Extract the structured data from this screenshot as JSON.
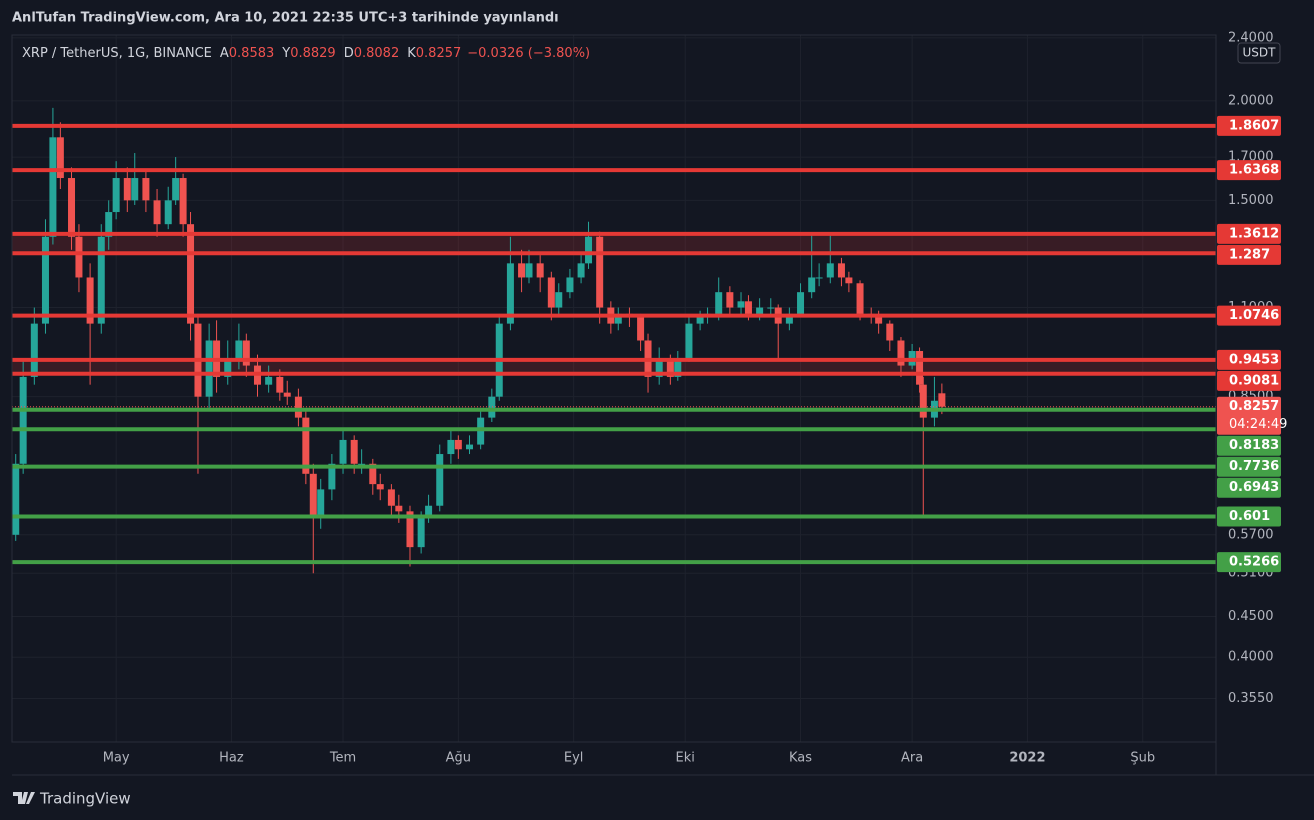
{
  "chart_data": {
    "type": "candlestick",
    "title": "AnlTufan TradingView.com, Ara 10, 2021 22:35 UTC+3 tarihinde yayınlandı",
    "symbol": "XRP / TetherUS, 1G, BINANCE",
    "ohlc_labels": [
      "A",
      "Y",
      "D",
      "K"
    ],
    "change": "−0.0326 (−3.80%)",
    "currency": "USDT",
    "countdown": "04:24:49",
    "brand": "TradingView",
    "log": true,
    "grid": true,
    "up_color": "#26a69a",
    "down_color": "#ef5350",
    "xlim": [
      2,
      325.7
    ],
    "xticks": [
      {
        "value": 30,
        "label": "May"
      },
      {
        "value": 61,
        "label": "Haz"
      },
      {
        "value": 91,
        "label": "Tem"
      },
      {
        "value": 122,
        "label": "Ağu"
      },
      {
        "value": 153,
        "label": "Eyl"
      },
      {
        "value": 183,
        "label": "Eki"
      },
      {
        "value": 214,
        "label": "Kas"
      },
      {
        "value": 244,
        "label": "Ara"
      },
      {
        "value": 275,
        "label": "2022"
      },
      {
        "value": 306,
        "label": "Şub"
      }
    ],
    "ylim": [
      0.313,
      2.42
    ],
    "yticks": [
      {
        "value": 2.4,
        "label": "2.4000"
      },
      {
        "value": 2.0,
        "label": "2.0000"
      },
      {
        "value": 1.7,
        "label": "1.7000"
      },
      {
        "value": 1.5,
        "label": "1.5000"
      },
      {
        "value": 1.1,
        "label": "1.1000"
      },
      {
        "value": 0.85,
        "label": "0.8500"
      },
      {
        "value": 0.57,
        "label": "0.5700"
      },
      {
        "value": 0.51,
        "label": "0.5100"
      },
      {
        "value": 0.45,
        "label": "0.4500"
      },
      {
        "value": 0.4,
        "label": "0.4000"
      },
      {
        "value": 0.355,
        "label": "0.3550"
      }
    ],
    "levels": [
      {
        "value": 1.8607,
        "color": "#e53935"
      },
      {
        "value": 1.6368,
        "color": "#e53935"
      },
      {
        "value": 1.3612,
        "color": "#e53935",
        "zone_with_next": true
      },
      {
        "value": 1.287,
        "color": "#e53935"
      },
      {
        "value": 1.0746,
        "color": "#e53935"
      },
      {
        "value": 0.9453,
        "color": "#e53935",
        "zone_with_next": true
      },
      {
        "value": 0.9081,
        "color": "#e53935"
      },
      {
        "value": 0.8183,
        "color": "#43a047"
      },
      {
        "value": 0.7736,
        "color": "#43a047"
      },
      {
        "value": 0.6943,
        "color": "#43a047"
      },
      {
        "value": 0.601,
        "color": "#43a047"
      },
      {
        "value": 0.5266,
        "color": "#43a047"
      }
    ],
    "candles": {
      "x": [
        3,
        5,
        8,
        11,
        13,
        15,
        18,
        20,
        23,
        26,
        28,
        30,
        33,
        35,
        38,
        41,
        44,
        46,
        48,
        50,
        52,
        55,
        57,
        60,
        63,
        65,
        68,
        71,
        74,
        76,
        79,
        81,
        83,
        85,
        88,
        91,
        94,
        96,
        99,
        101,
        104,
        106,
        109,
        112,
        114,
        117,
        120,
        122,
        125,
        128,
        131,
        133,
        136,
        139,
        141,
        144,
        147,
        149,
        152,
        155,
        157,
        160,
        163,
        165,
        168,
        171,
        173,
        176,
        179,
        181,
        184,
        187,
        189,
        192,
        195,
        198,
        200,
        203,
        206,
        208,
        211,
        214,
        217,
        219,
        222,
        225,
        227,
        230,
        233,
        235,
        238,
        241,
        244,
        246,
        247,
        250,
        252
      ],
      "open": [
        0.57,
        0.7,
        0.9,
        1.05,
        1.35,
        1.8,
        1.6,
        1.35,
        1.2,
        1.05,
        1.35,
        1.45,
        1.6,
        1.5,
        1.6,
        1.5,
        1.4,
        1.5,
        1.6,
        1.4,
        1.05,
        0.85,
        1.0,
        0.9,
        0.95,
        1.0,
        0.93,
        0.88,
        0.9,
        0.86,
        0.85,
        0.8,
        0.68,
        0.6,
        0.65,
        0.7,
        0.75,
        0.7,
        0.7,
        0.66,
        0.65,
        0.62,
        0.61,
        0.55,
        0.6,
        0.62,
        0.72,
        0.75,
        0.73,
        0.74,
        0.8,
        0.85,
        1.05,
        1.25,
        1.2,
        1.25,
        1.2,
        1.1,
        1.15,
        1.2,
        1.25,
        1.35,
        1.1,
        1.05,
        1.08,
        1.07,
        1.0,
        0.9,
        0.95,
        0.9,
        0.95,
        1.05,
        1.07,
        1.08,
        1.15,
        1.1,
        1.12,
        1.08,
        1.1,
        1.1,
        1.05,
        1.08,
        1.15,
        1.2,
        1.2,
        1.25,
        1.2,
        1.18,
        1.08,
        1.07,
        1.05,
        1.0,
        0.93,
        0.97,
        0.88,
        0.8,
        0.8583
      ],
      "high": [
        0.72,
        0.95,
        1.1,
        1.42,
        1.96,
        1.88,
        1.65,
        1.4,
        1.25,
        1.4,
        1.5,
        1.68,
        1.65,
        1.72,
        1.64,
        1.55,
        1.56,
        1.7,
        1.62,
        1.45,
        1.08,
        1.05,
        1.06,
        1.0,
        1.05,
        1.02,
        0.96,
        0.93,
        0.92,
        0.89,
        0.87,
        0.82,
        0.7,
        0.67,
        0.72,
        0.77,
        0.76,
        0.73,
        0.71,
        0.68,
        0.66,
        0.64,
        0.62,
        0.61,
        0.64,
        0.74,
        0.77,
        0.76,
        0.76,
        0.82,
        0.87,
        1.08,
        1.35,
        1.3,
        1.3,
        1.28,
        1.22,
        1.18,
        1.23,
        1.28,
        1.41,
        1.37,
        1.12,
        1.1,
        1.1,
        1.08,
        1.02,
        0.98,
        0.96,
        0.97,
        1.07,
        1.09,
        1.1,
        1.2,
        1.17,
        1.15,
        1.14,
        1.13,
        1.13,
        1.11,
        1.1,
        1.18,
        1.36,
        1.25,
        1.36,
        1.27,
        1.22,
        1.19,
        1.1,
        1.09,
        1.06,
        1.01,
        0.99,
        0.98,
        0.9,
        0.9,
        0.8829
      ],
      "low": [
        0.56,
        0.68,
        0.88,
        1.02,
        1.32,
        1.55,
        1.3,
        1.15,
        0.88,
        1.02,
        1.3,
        1.42,
        1.45,
        1.48,
        1.45,
        1.35,
        1.38,
        1.48,
        1.35,
        1.0,
        0.68,
        0.82,
        0.86,
        0.88,
        0.92,
        0.9,
        0.85,
        0.86,
        0.84,
        0.83,
        0.78,
        0.66,
        0.51,
        0.58,
        0.63,
        0.68,
        0.68,
        0.68,
        0.64,
        0.63,
        0.6,
        0.59,
        0.52,
        0.54,
        0.59,
        0.61,
        0.7,
        0.71,
        0.72,
        0.73,
        0.79,
        0.84,
        1.03,
        1.15,
        1.18,
        1.15,
        1.06,
        1.08,
        1.13,
        1.18,
        1.23,
        1.05,
        1.02,
        1.03,
        1.04,
        0.97,
        0.86,
        0.88,
        0.88,
        0.89,
        0.94,
        1.03,
        1.05,
        1.06,
        1.08,
        1.08,
        1.06,
        1.06,
        1.07,
        0.95,
        1.03,
        1.07,
        1.13,
        1.17,
        1.18,
        1.17,
        1.15,
        1.06,
        1.05,
        1.02,
        0.97,
        0.9,
        0.92,
        0.86,
        0.6,
        0.78,
        0.8082
      ],
      "close": [
        0.7,
        0.9,
        1.05,
        1.35,
        1.8,
        1.6,
        1.35,
        1.2,
        1.05,
        1.35,
        1.45,
        1.6,
        1.5,
        1.6,
        1.5,
        1.4,
        1.5,
        1.6,
        1.4,
        1.05,
        0.85,
        1.0,
        0.9,
        0.95,
        1.0,
        0.93,
        0.88,
        0.9,
        0.86,
        0.85,
        0.8,
        0.68,
        0.6,
        0.65,
        0.7,
        0.75,
        0.7,
        0.7,
        0.66,
        0.65,
        0.62,
        0.61,
        0.55,
        0.6,
        0.62,
        0.72,
        0.75,
        0.73,
        0.74,
        0.8,
        0.85,
        1.05,
        1.25,
        1.2,
        1.25,
        1.2,
        1.1,
        1.15,
        1.2,
        1.25,
        1.35,
        1.1,
        1.05,
        1.08,
        1.07,
        1.0,
        0.9,
        0.95,
        0.9,
        0.95,
        1.05,
        1.07,
        1.08,
        1.15,
        1.1,
        1.12,
        1.08,
        1.1,
        1.1,
        1.05,
        1.08,
        1.15,
        1.2,
        1.2,
        1.25,
        1.2,
        1.18,
        1.08,
        1.07,
        1.05,
        1.0,
        0.93,
        0.97,
        0.88,
        0.8,
        0.84,
        0.8257
      ]
    }
  }
}
